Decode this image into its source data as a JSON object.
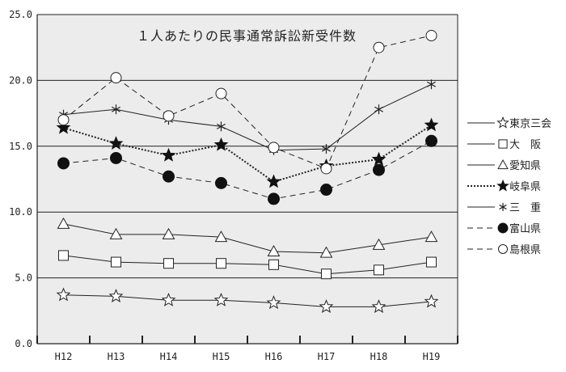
{
  "chart_data": {
    "type": "line",
    "title": "１人あたりの民事通常訴訟新受件数",
    "xlabel": "",
    "ylabel": "",
    "categories": [
      "H12",
      "H13",
      "H14",
      "H15",
      "H16",
      "H17",
      "H18",
      "H19"
    ],
    "ylim": [
      0,
      25
    ],
    "y_ticks": [
      "0.0",
      "5.0",
      "10.0",
      "15.0",
      "20.0",
      "25.0"
    ],
    "grid": true,
    "legend_position": "right",
    "series": [
      {
        "name": "東京三会",
        "marker": "star-open",
        "line": "solid",
        "values": [
          3.7,
          3.6,
          3.3,
          3.3,
          3.1,
          2.8,
          2.8,
          3.2
        ]
      },
      {
        "name": "大　阪",
        "marker": "square-open",
        "line": "solid",
        "values": [
          6.7,
          6.2,
          6.1,
          6.1,
          6.0,
          5.3,
          5.6,
          6.2
        ]
      },
      {
        "name": "愛知県",
        "marker": "triangle-open",
        "line": "solid",
        "values": [
          9.1,
          8.3,
          8.3,
          8.1,
          7.0,
          6.9,
          7.5,
          8.1
        ]
      },
      {
        "name": "岐阜県",
        "marker": "star-filled",
        "line": "dotted",
        "values": [
          16.4,
          15.2,
          14.3,
          15.1,
          12.3,
          13.5,
          14.0,
          16.6
        ]
      },
      {
        "name": "三　重",
        "marker": "asterisk",
        "line": "solid",
        "values": [
          17.4,
          17.8,
          17.0,
          16.5,
          14.7,
          14.8,
          17.8,
          19.7
        ]
      },
      {
        "name": "富山県",
        "marker": "circle-filled",
        "line": "dashed",
        "values": [
          13.7,
          14.1,
          12.7,
          12.2,
          11.0,
          11.7,
          13.2,
          15.4
        ]
      },
      {
        "name": "島根県",
        "marker": "circle-open",
        "line": "dashed",
        "values": [
          17.0,
          20.2,
          17.3,
          19.0,
          14.9,
          13.3,
          22.5,
          23.4
        ]
      }
    ]
  }
}
